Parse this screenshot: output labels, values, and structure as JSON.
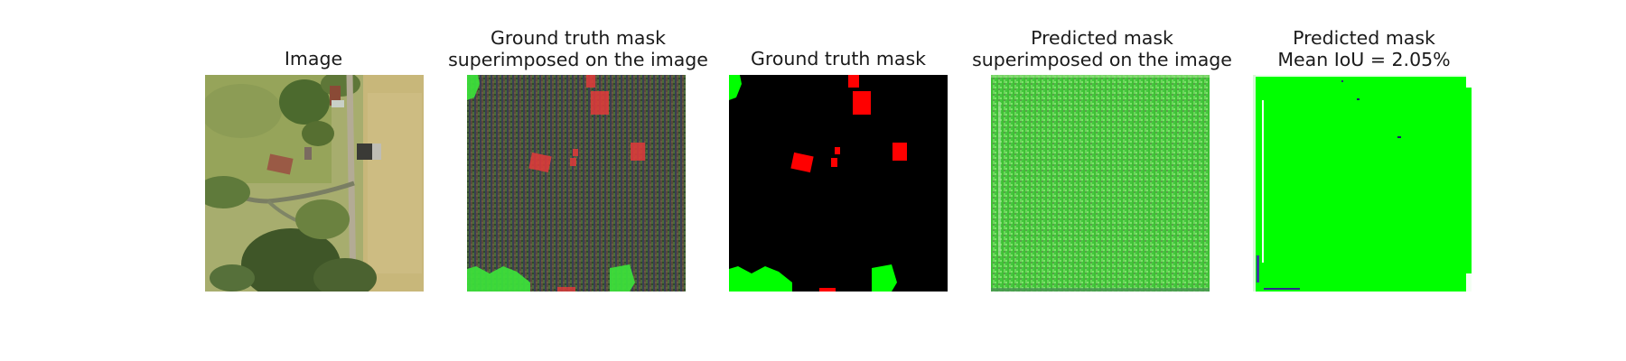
{
  "figure": {
    "panels": [
      {
        "title_lines": [
          "Image"
        ]
      },
      {
        "title_lines": [
          "Ground truth mask",
          "superimposed on the image"
        ]
      },
      {
        "title_lines": [
          "Ground truth mask"
        ]
      },
      {
        "title_lines": [
          "Predicted mask",
          "superimposed on the image"
        ]
      },
      {
        "title_lines": [
          "Predicted mask",
          "Mean IoU = 2.05%"
        ]
      }
    ],
    "colors": {
      "background_class": "#000000",
      "red_class": "#ff0000",
      "green_class": "#00ff00"
    }
  }
}
